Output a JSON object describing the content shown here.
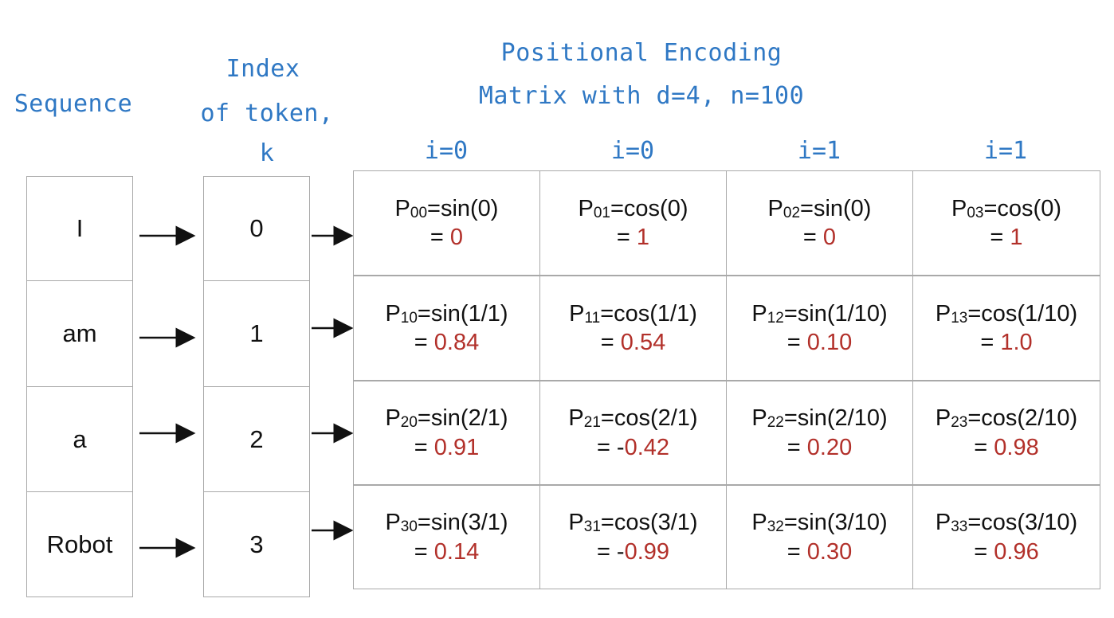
{
  "headers": {
    "sequence": "Sequence",
    "index_lines": [
      "Index",
      "of token,",
      "k"
    ],
    "matrix_lines": [
      "Positional Encoding",
      "Matrix with d=4, n=100"
    ]
  },
  "column_labels": [
    "i=0",
    "i=0",
    "i=1",
    "i=1"
  ],
  "sequence": [
    "I",
    "am",
    "a",
    "Robot"
  ],
  "indices": [
    "0",
    "1",
    "2",
    "3"
  ],
  "matrix": [
    [
      {
        "p": "P",
        "sub": "00",
        "expr": "=sin(0)",
        "eq": "= ",
        "val": "0"
      },
      {
        "p": "P",
        "sub": "01",
        "expr": "=cos(0)",
        "eq": "= ",
        "val": "1"
      },
      {
        "p": "P",
        "sub": "02",
        "expr": "=sin(0)",
        "eq": "= ",
        "val": "0"
      },
      {
        "p": "P",
        "sub": "03",
        "expr": "=cos(0)",
        "eq": "= ",
        "val": "1"
      }
    ],
    [
      {
        "p": "P",
        "sub": "10",
        "expr": "=sin(1/1)",
        "eq": "= ",
        "val": "0.84"
      },
      {
        "p": "P",
        "sub": "11",
        "expr": "=cos(1/1)",
        "eq": "= ",
        "val": "0.54"
      },
      {
        "p": "P",
        "sub": "12",
        "expr": "=sin(1/10)",
        "eq": "= ",
        "val": "0.10"
      },
      {
        "p": "P",
        "sub": "13",
        "expr": "=cos(1/10)",
        "eq": "= ",
        "val": "1.0"
      }
    ],
    [
      {
        "p": "P",
        "sub": "20",
        "expr": "=sin(2/1)",
        "eq": "= ",
        "val": "0.91"
      },
      {
        "p": "P",
        "sub": "21",
        "expr": "=cos(2/1)",
        "eq": "= -",
        "val": "0.42"
      },
      {
        "p": "P",
        "sub": "22",
        "expr": "=sin(2/10)",
        "eq": "= ",
        "val": "0.20"
      },
      {
        "p": "P",
        "sub": "23",
        "expr": "=cos(2/10)",
        "eq": "= ",
        "val": "0.98"
      }
    ],
    [
      {
        "p": "P",
        "sub": "30",
        "expr": "=sin(3/1)",
        "eq": "= ",
        "val": "0.14"
      },
      {
        "p": "P",
        "sub": "31",
        "expr": "=cos(3/1)",
        "eq": "= -",
        "val": "0.99"
      },
      {
        "p": "P",
        "sub": "32",
        "expr": "=sin(3/10)",
        "eq": "= ",
        "val": "0.30"
      },
      {
        "p": "P",
        "sub": "33",
        "expr": "=cos(3/10)",
        "eq": "= ",
        "val": "0.96"
      }
    ]
  ],
  "colors": {
    "handwriting": "#2f78c4",
    "value": "#b2302a",
    "border": "#a9a9a9"
  }
}
